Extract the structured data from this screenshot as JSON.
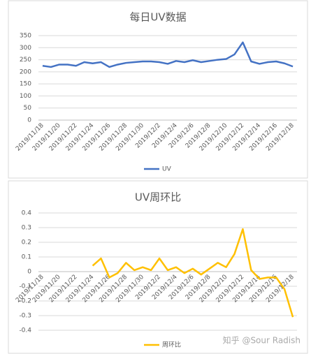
{
  "chart_data": [
    {
      "type": "line",
      "title": "每日UV数据",
      "categories": [
        "2019/11/18",
        null,
        "2019/11/20",
        null,
        "2019/11/22",
        null,
        "2019/11/24",
        null,
        "2019/11/26",
        null,
        "2019/11/28",
        null,
        "2019/11/30",
        null,
        "2019/12/2",
        null,
        "2019/12/4",
        null,
        "2019/12/6",
        null,
        "2019/12/8",
        null,
        "2019/12/10",
        null,
        "2019/12/12",
        null,
        "2019/12/14",
        null,
        "2019/12/16",
        null,
        "2019/12/18"
      ],
      "series": [
        {
          "name": "UV",
          "color": "#4472c4",
          "values": [
            225,
            220,
            230,
            230,
            225,
            240,
            235,
            240,
            220,
            230,
            237,
            240,
            243,
            243,
            240,
            233,
            245,
            240,
            248,
            240,
            245,
            250,
            253,
            272,
            322,
            243,
            233,
            240,
            243,
            235,
            222
          ]
        }
      ],
      "ylim": [
        0,
        350
      ],
      "yticks": [
        0,
        50,
        100,
        150,
        200,
        250,
        300,
        350
      ],
      "grid": true,
      "legend": "bottom"
    },
    {
      "type": "line",
      "title": "UV周环比",
      "categories": [
        "2019/11/18",
        null,
        "2019/11/20",
        null,
        "2019/11/22",
        null,
        "2019/11/24",
        null,
        "2019/11/26",
        null,
        "2019/11/28",
        null,
        "2019/11/30",
        null,
        "2019/12/2",
        null,
        "2019/12/4",
        null,
        "2019/12/6",
        null,
        "2019/12/8",
        null,
        "2019/12/10",
        null,
        "2019/12/12",
        null,
        "2019/12/14",
        null,
        "2019/12/16",
        null,
        "2019/12/18"
      ],
      "series": [
        {
          "name": "周环比",
          "color": "#ffc000",
          "values": [
            null,
            null,
            null,
            null,
            null,
            null,
            0.04,
            0.09,
            -0.04,
            -0.01,
            0.06,
            0.01,
            0.03,
            0.01,
            0.09,
            0.01,
            0.03,
            -0.01,
            0.02,
            -0.02,
            0.02,
            0.06,
            0.03,
            0.12,
            0.29,
            0.01,
            -0.05,
            -0.04,
            -0.04,
            -0.12,
            -0.31
          ]
        }
      ],
      "ylim": [
        -0.4,
        0.4
      ],
      "yticks": [
        -0.4,
        -0.3,
        -0.2,
        -0.1,
        0,
        0.1,
        0.2,
        0.3,
        0.4
      ],
      "grid": true,
      "legend": "bottom"
    }
  ],
  "watermark": "知乎 @Sour Radish"
}
